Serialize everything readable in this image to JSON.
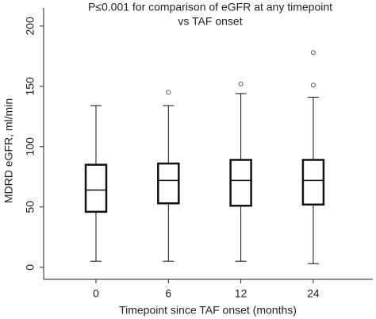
{
  "chart_data": {
    "type": "box",
    "title": [
      "P≤0.001 for comparison of eGFR at any timepoint",
      "vs TAF onset"
    ],
    "x_label": "Timepoint since TAF onset (months)",
    "y_label": "MDRD eGFR, ml/min",
    "categories": [
      "0",
      "6",
      "12",
      "24"
    ],
    "min": [
      5,
      5,
      5,
      3
    ],
    "q1": [
      46,
      53,
      51,
      52
    ],
    "median": [
      64,
      72,
      72,
      72
    ],
    "q3": [
      85,
      86,
      89,
      89
    ],
    "max": [
      134,
      134,
      144,
      141
    ],
    "outliers": [
      [],
      [
        145
      ],
      [
        152
      ],
      [
        151,
        178
      ]
    ],
    "color": "#111111",
    "ylim": [
      -10,
      215
    ],
    "yticks": [
      0,
      50,
      100,
      150,
      200
    ]
  }
}
